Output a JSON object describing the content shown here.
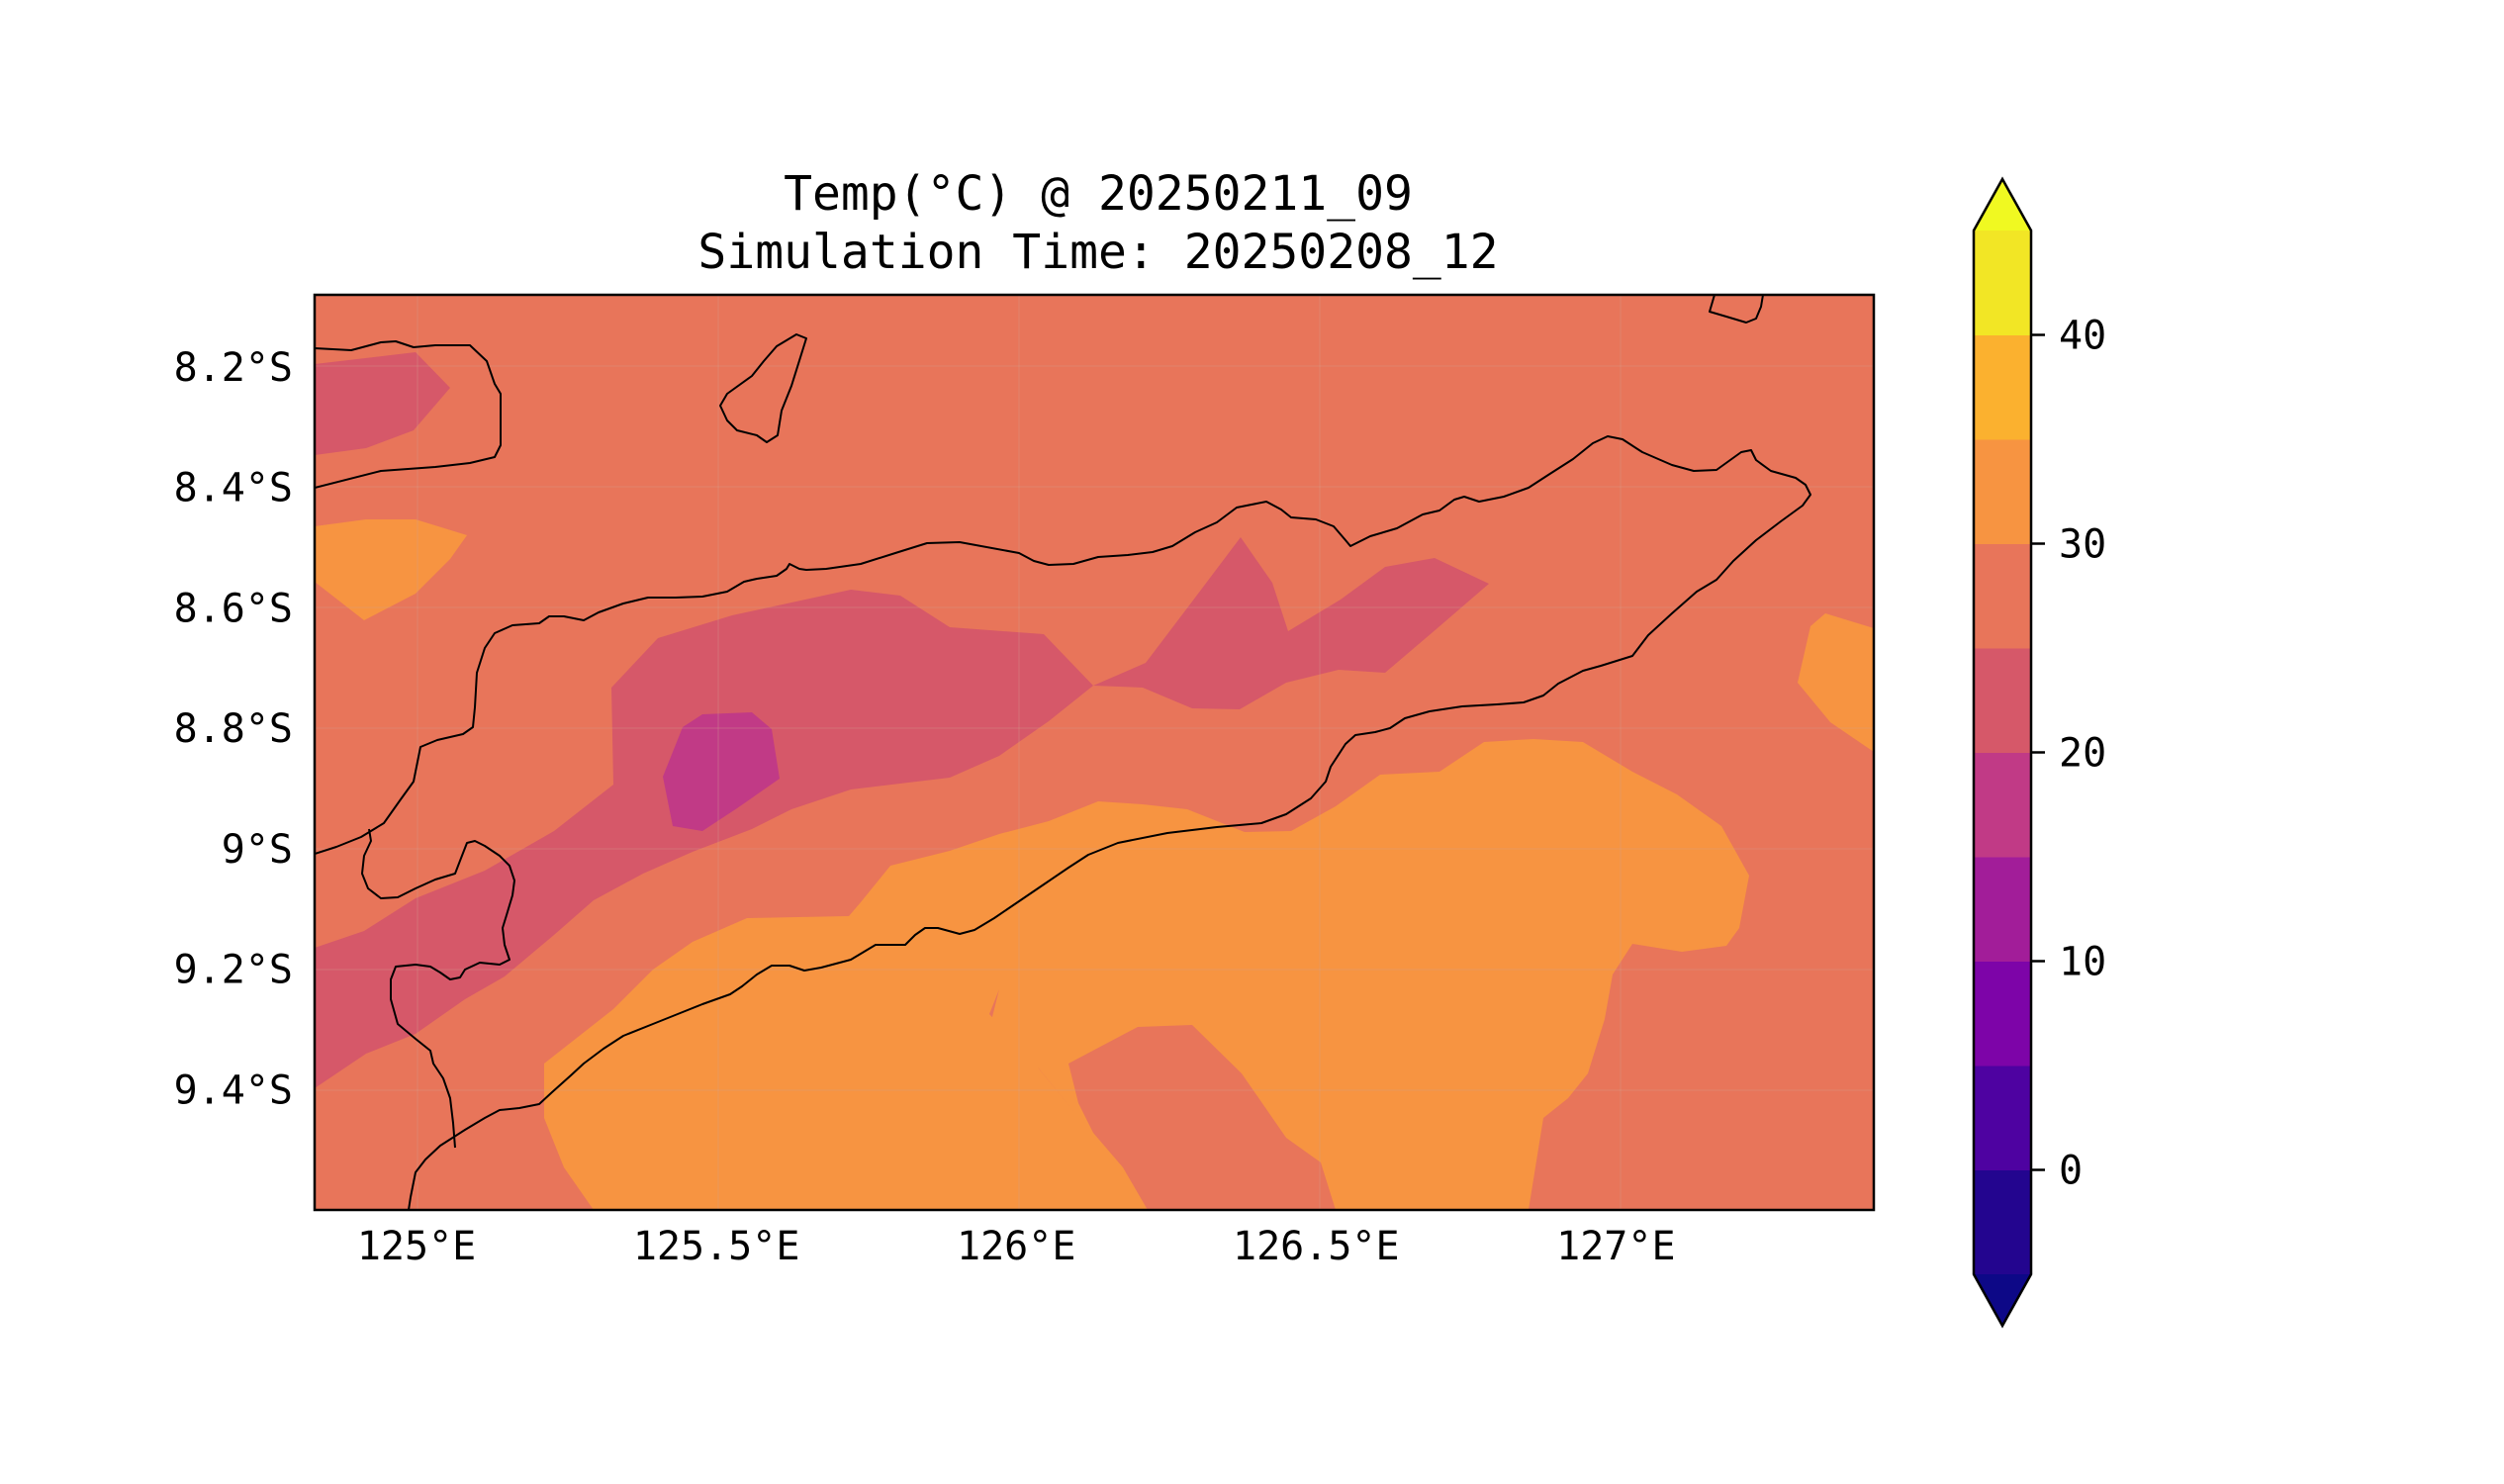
{
  "title_line1": "Temp(°C) @ 20250211_09",
  "title_line2": "Simulation Time: 20250208_12",
  "map": {
    "variable": "Temperature",
    "units": "°C",
    "lon_range": [
      124.83,
      127.43
    ],
    "lat_range": [
      -9.6,
      -8.08
    ],
    "x_ticks": [
      {
        "value": 125.0,
        "label": "125°E"
      },
      {
        "value": 125.5,
        "label": "125.5°E"
      },
      {
        "value": 126.0,
        "label": "126°E"
      },
      {
        "value": 126.5,
        "label": "126.5°E"
      },
      {
        "value": 127.0,
        "label": "127°E"
      }
    ],
    "y_ticks": [
      {
        "value": -8.2,
        "label": "8.2°S"
      },
      {
        "value": -8.4,
        "label": "8.4°S"
      },
      {
        "value": -8.6,
        "label": "8.6°S"
      },
      {
        "value": -8.8,
        "label": "8.8°S"
      },
      {
        "value": -9.0,
        "label": "9°S"
      },
      {
        "value": -9.2,
        "label": "9.2°S"
      },
      {
        "value": -9.4,
        "label": "9.4°S"
      }
    ],
    "gridlines": true,
    "coastlines": true
  },
  "colorbar": {
    "colormap": "plasma",
    "extend": "both",
    "boundaries": [
      -5,
      0,
      5,
      10,
      15,
      20,
      25,
      30,
      35,
      40,
      45
    ],
    "colors": [
      "#23058f",
      "#4e02a1",
      "#7d04a8",
      "#a21d99",
      "#c13a86",
      "#d65869",
      "#e8755a",
      "#f79441",
      "#fbb12f",
      "#f2e625"
    ],
    "under_color": "#0d0887",
    "over_color": "#f0f921",
    "ticks": [
      {
        "value": 0,
        "label": "0"
      },
      {
        "value": 10,
        "label": "10"
      },
      {
        "value": 20,
        "label": "20"
      },
      {
        "value": 30,
        "label": "30"
      },
      {
        "value": 40,
        "label": "40"
      }
    ]
  }
}
